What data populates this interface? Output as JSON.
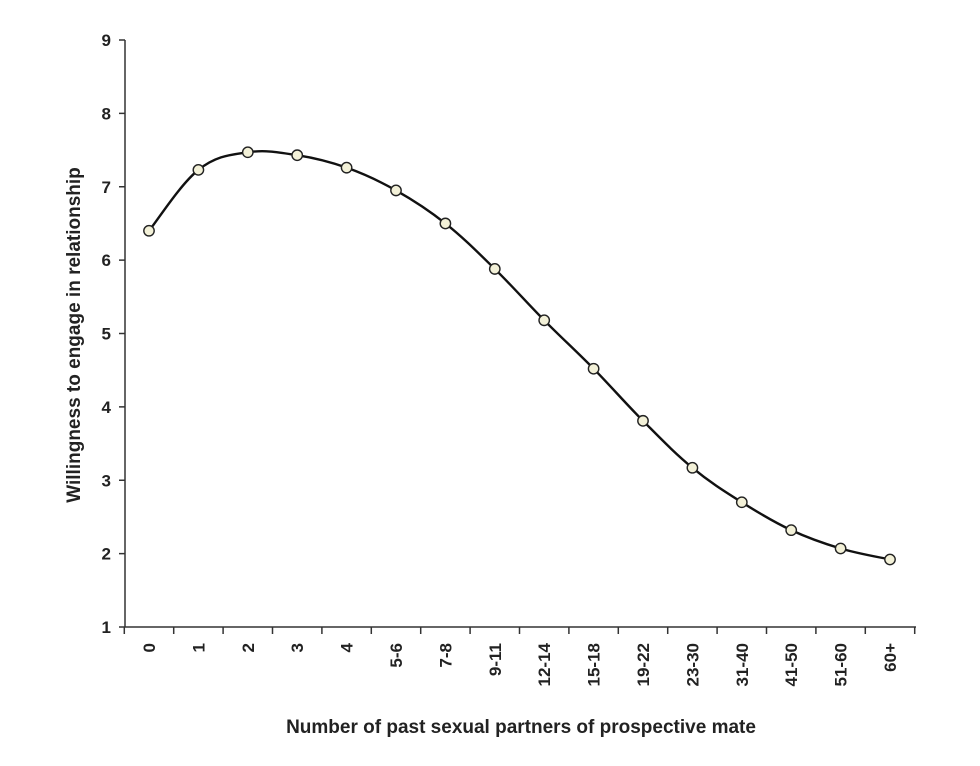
{
  "chart_data": {
    "type": "line",
    "title": "",
    "xlabel": "Number of past sexual partners of prospective mate",
    "ylabel": "Willingness to engage in relationship",
    "categories": [
      "0",
      "1",
      "2",
      "3",
      "4",
      "5-6",
      "7-8",
      "9-11",
      "12-14",
      "15-18",
      "19-22",
      "23-30",
      "31-40",
      "41-50",
      "51-60",
      "60+"
    ],
    "y_ticks": [
      "1",
      "2",
      "3",
      "4",
      "5",
      "6",
      "7",
      "8",
      "9"
    ],
    "ylim": [
      1,
      9
    ],
    "grid": false,
    "legend": "none",
    "series": [
      {
        "values": [
          6.4,
          7.23,
          7.47,
          7.43,
          7.26,
          6.95,
          6.5,
          5.88,
          5.18,
          4.52,
          3.81,
          3.17,
          2.7,
          2.32,
          2.07,
          1.92
        ]
      }
    ],
    "colors": {
      "line": "#111111",
      "marker_fill": "#f3f1d8",
      "marker_stroke": "#222222",
      "axis": "#333333"
    }
  }
}
